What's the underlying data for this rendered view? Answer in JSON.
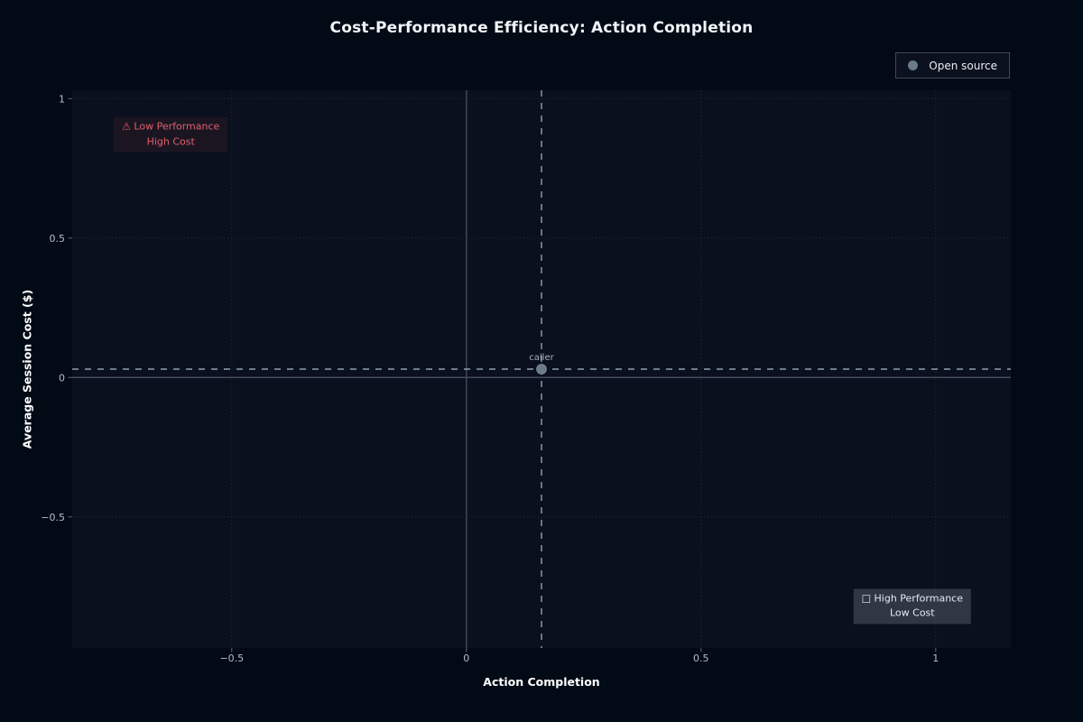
{
  "colors": {
    "figure_bg": "#020a15",
    "plot_bg": "#0a101d",
    "grid": "#232c3c",
    "zero_line": "#414d5c",
    "tick": "#5a6673",
    "tick_label": "#b2bdc9",
    "dashed_crosshair": "#8ca1b3",
    "marker_fill": "#697a88",
    "marker_edge": "#8a99a6",
    "point_label": "#a6b1bb",
    "title": "#f2f5f8",
    "axis_label": "#ffffff",
    "legend_border": "#3e4a59",
    "legend_text": "#e9eef3"
  },
  "chart_data": {
    "type": "scatter",
    "title": "Cost-Performance Efficiency: Action Completion",
    "xlabel": "Action Completion",
    "ylabel": "Average Session Cost ($)",
    "xlim": [
      -0.84,
      1.16
    ],
    "ylim": [
      -0.97,
      1.03
    ],
    "x_ticks": [
      -0.5,
      0,
      0.5,
      1
    ],
    "y_ticks": [
      -0.5,
      0,
      0.5,
      1
    ],
    "grid": true,
    "legend_position": "top-right",
    "series": [
      {
        "name": "Open source",
        "marker_color": "#697a88",
        "points": [
          {
            "label": "caller",
            "x": 0.16,
            "y": 0.03
          }
        ]
      }
    ],
    "crosshair": {
      "x": 0.16,
      "y": 0.03
    },
    "legend": {
      "entries": [
        {
          "label": "Open source",
          "marker_color": "#697a88"
        }
      ]
    },
    "annotations": [
      {
        "id": "low-performance-high-cost",
        "icon": "⚠",
        "icon_name": "warning-icon",
        "line1": "Low Performance",
        "line2": "High Cost",
        "x": -0.63,
        "y": 0.87,
        "color": "#e0606c",
        "bg": "rgba(226,89,101,0.08)"
      },
      {
        "id": "high-performance-low-cost",
        "icon": "□",
        "icon_name": "placeholder-square-icon",
        "line1": "High Performance",
        "line2": "Low Cost",
        "x": 0.95,
        "y": -0.82,
        "color": "#e6ebf0",
        "bg": "rgba(195,209,223,0.2)"
      }
    ]
  }
}
